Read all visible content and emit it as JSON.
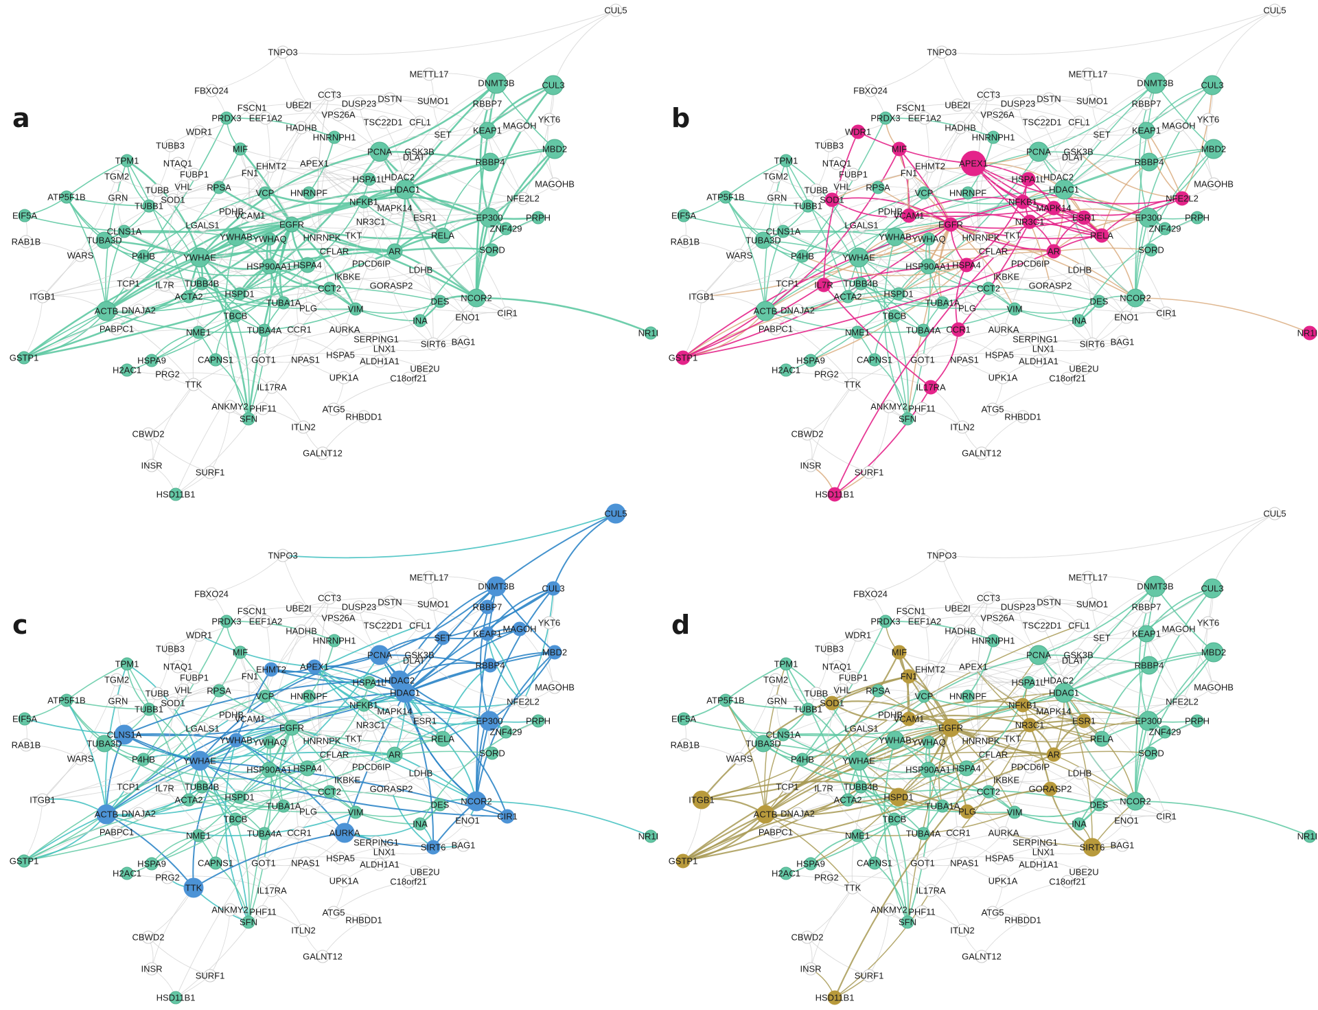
{
  "colors": {
    "background": "#ffffff",
    "base_node": "#64c7a5",
    "base_node_stroke": "#4fb08e",
    "empty_node": "#ffffff",
    "empty_stroke": "#c8c8c8",
    "grey_edge": "#cfcfcf",
    "green_edge": "#5fc9a3",
    "magenta": "#e4248a",
    "tan_edge": "#d8a878",
    "blue": "#4c93d6",
    "blue_edge": "#2f86c8",
    "teal_edge": "#3fbfbf",
    "olive": "#b89a3c",
    "olive_edge": "#a89a55",
    "label": "#1a1a1a"
  },
  "nodes": [
    {
      "id": "CUL5",
      "label": "CUL5"
    },
    {
      "id": "TNPO3",
      "label": "TNPO3"
    },
    {
      "id": "METTL17",
      "label": "METTL17"
    },
    {
      "id": "DNMT3B",
      "label": "DNMT3B"
    },
    {
      "id": "CUL3",
      "label": "CUL3"
    },
    {
      "id": "FBXO24",
      "label": "FBXO24"
    },
    {
      "id": "CCT3",
      "label": "CCT3"
    },
    {
      "id": "UBE2I",
      "label": "UBE2I"
    },
    {
      "id": "DUSP23",
      "label": "DUSP23"
    },
    {
      "id": "DSTN",
      "label": "DSTN"
    },
    {
      "id": "SUMO1",
      "label": "SUMO1"
    },
    {
      "id": "RBBP7",
      "label": "RBBP7"
    },
    {
      "id": "YKT6",
      "label": "YKT6"
    },
    {
      "id": "FSCN1",
      "label": "FSCN1"
    },
    {
      "id": "PRDX3",
      "label": "PRDX3"
    },
    {
      "id": "VPS26A",
      "label": "VPS26A"
    },
    {
      "id": "EEF1A2",
      "label": "EEF1A2"
    },
    {
      "id": "HADHB",
      "label": "HADHB"
    },
    {
      "id": "TSC22D1",
      "label": "TSC22D1"
    },
    {
      "id": "CFL1",
      "label": "CFL1"
    },
    {
      "id": "WDR1",
      "label": "WDR1"
    },
    {
      "id": "HNRNPH1",
      "label": "HNRNPH1"
    },
    {
      "id": "SET",
      "label": "SET"
    },
    {
      "id": "KEAP1",
      "label": "KEAP1"
    },
    {
      "id": "MAGOH",
      "label": "MAGOH"
    },
    {
      "id": "TUBB3",
      "label": "TUBB3"
    },
    {
      "id": "MIF",
      "label": "MIF"
    },
    {
      "id": "PCNA",
      "label": "PCNA"
    },
    {
      "id": "GSK3B",
      "label": "GSK3B"
    },
    {
      "id": "DLAT",
      "label": "DLAT"
    },
    {
      "id": "RBBP4",
      "label": "RBBP4"
    },
    {
      "id": "MBD2",
      "label": "MBD2"
    },
    {
      "id": "TPM1",
      "label": "TPM1"
    },
    {
      "id": "NTAQ1",
      "label": "NTAQ1"
    },
    {
      "id": "EHMT2",
      "label": "EHMT2"
    },
    {
      "id": "APEX1",
      "label": "APEX1"
    },
    {
      "id": "FUBP1",
      "label": "FUBP1"
    },
    {
      "id": "FN1",
      "label": "FN1"
    },
    {
      "id": "TGM2",
      "label": "TGM2"
    },
    {
      "id": "HSPA1L",
      "label": "HSPA1L"
    },
    {
      "id": "HDAC2",
      "label": "HDAC2"
    },
    {
      "id": "VHL",
      "label": "VHL"
    },
    {
      "id": "RPSA",
      "label": "RPSA"
    },
    {
      "id": "TUBB",
      "label": "TUBB"
    },
    {
      "id": "HDAC1",
      "label": "HDAC1"
    },
    {
      "id": "MAGOHB",
      "label": "MAGOHB"
    },
    {
      "id": "ATP5F1B",
      "label": "ATP5F1B"
    },
    {
      "id": "GRN",
      "label": "GRN"
    },
    {
      "id": "SOD1",
      "label": "SOD1"
    },
    {
      "id": "VCP",
      "label": "VCP"
    },
    {
      "id": "HNRNPF",
      "label": "HNRNPF"
    },
    {
      "id": "NFKB1",
      "label": "NFKB1"
    },
    {
      "id": "NFE2L2",
      "label": "NFE2L2"
    },
    {
      "id": "TUBB1",
      "label": "TUBB1"
    },
    {
      "id": "PDHB",
      "label": "PDHB"
    },
    {
      "id": "MAPK14",
      "label": "MAPK14"
    },
    {
      "id": "EIF5A",
      "label": "EIF5A"
    },
    {
      "id": "VCAM1",
      "label": "VCAM1"
    },
    {
      "id": "ESR1",
      "label": "ESR1"
    },
    {
      "id": "EP300",
      "label": "EP300"
    },
    {
      "id": "PRPH",
      "label": "PRPH"
    },
    {
      "id": "LGALS1",
      "label": "LGALS1"
    },
    {
      "id": "EGFR",
      "label": "EGFR"
    },
    {
      "id": "NR3C1",
      "label": "NR3C1"
    },
    {
      "id": "CLNS1A",
      "label": "CLNS1A"
    },
    {
      "id": "ZNF429",
      "label": "ZNF429"
    },
    {
      "id": "TUBA3D",
      "label": "TUBA3D"
    },
    {
      "id": "RAB1B",
      "label": "RAB1B"
    },
    {
      "id": "YWHAB",
      "label": "YWHAB"
    },
    {
      "id": "YWHAQ",
      "label": "YWHAQ"
    },
    {
      "id": "HNRNPK",
      "label": "HNRNPK"
    },
    {
      "id": "TKT",
      "label": "TKT"
    },
    {
      "id": "RELA",
      "label": "RELA"
    },
    {
      "id": "WARS",
      "label": "WARS"
    },
    {
      "id": "P4HB",
      "label": "P4HB"
    },
    {
      "id": "YWHAE",
      "label": "YWHAE"
    },
    {
      "id": "CFLAR",
      "label": "CFLAR"
    },
    {
      "id": "AR",
      "label": "AR"
    },
    {
      "id": "SORD",
      "label": "SORD"
    },
    {
      "id": "HSP90AA1",
      "label": "HSP90AA1"
    },
    {
      "id": "HSPA4",
      "label": "HSPA4"
    },
    {
      "id": "PDCD6IP",
      "label": "PDCD6IP"
    },
    {
      "id": "TCP1",
      "label": "TCP1"
    },
    {
      "id": "IL7R",
      "label": "IL7R"
    },
    {
      "id": "TUBB4B",
      "label": "TUBB4B"
    },
    {
      "id": "IKBKE",
      "label": "IKBKE"
    },
    {
      "id": "LDHB",
      "label": "LDHB"
    },
    {
      "id": "ITGB1",
      "label": "ITGB1"
    },
    {
      "id": "GORASP2",
      "label": "GORASP2"
    },
    {
      "id": "ACTA2",
      "label": "ACTA2"
    },
    {
      "id": "HSPD1",
      "label": "HSPD1"
    },
    {
      "id": "CCT2",
      "label": "CCT2"
    },
    {
      "id": "TUBA1A",
      "label": "TUBA1A"
    },
    {
      "id": "NCOR2",
      "label": "NCOR2"
    },
    {
      "id": "ACTB",
      "label": "ACTB"
    },
    {
      "id": "DNAJA2",
      "label": "DNAJA2"
    },
    {
      "id": "TBCB",
      "label": "TBCB"
    },
    {
      "id": "PLG",
      "label": "PLG"
    },
    {
      "id": "VIM",
      "label": "VIM"
    },
    {
      "id": "DES",
      "label": "DES"
    },
    {
      "id": "CIR1",
      "label": "CIR1"
    },
    {
      "id": "ENO1",
      "label": "ENO1"
    },
    {
      "id": "NME1",
      "label": "NME1"
    },
    {
      "id": "TUBA4A",
      "label": "TUBA4A"
    },
    {
      "id": "CCR1",
      "label": "CCR1"
    },
    {
      "id": "AURKA",
      "label": "AURKA"
    },
    {
      "id": "INA",
      "label": "INA"
    },
    {
      "id": "PABPC1",
      "label": "PABPC1"
    },
    {
      "id": "SERPING1",
      "label": "SERPING1"
    },
    {
      "id": "LNX1",
      "label": "LNX1"
    },
    {
      "id": "SIRT6",
      "label": "SIRT6"
    },
    {
      "id": "BAG1",
      "label": "BAG1"
    },
    {
      "id": "NR1I2",
      "label": "NR1I2"
    },
    {
      "id": "GSTP1",
      "label": "GSTP1"
    },
    {
      "id": "HSPA9",
      "label": "HSPA9"
    },
    {
      "id": "H2AC1",
      "label": "H2AC1"
    },
    {
      "id": "CAPNS1",
      "label": "CAPNS1"
    },
    {
      "id": "GOT1",
      "label": "GOT1"
    },
    {
      "id": "NPAS1",
      "label": "NPAS1"
    },
    {
      "id": "HSPA5",
      "label": "HSPA5"
    },
    {
      "id": "ALDH1A1",
      "label": "ALDH1A1"
    },
    {
      "id": "UBE2U",
      "label": "UBE2U"
    },
    {
      "id": "PRG2",
      "label": "PRG2"
    },
    {
      "id": "TTK",
      "label": "TTK"
    },
    {
      "id": "IL17RA",
      "label": "IL17RA"
    },
    {
      "id": "UPK1A",
      "label": "UPK1A"
    },
    {
      "id": "C18orf21",
      "label": "C18orf21"
    },
    {
      "id": "ANKMY2",
      "label": "ANKMY2"
    },
    {
      "id": "PHF11",
      "label": "PHF11"
    },
    {
      "id": "ATG5",
      "label": "ATG5"
    },
    {
      "id": "RHBDD1",
      "label": "RHBDD1"
    },
    {
      "id": "SFN",
      "label": "SFN"
    },
    {
      "id": "CBWD2",
      "label": "CBWD2"
    },
    {
      "id": "ITLN2",
      "label": "ITLN2"
    },
    {
      "id": "GALNT12",
      "label": "GALNT12"
    },
    {
      "id": "INSR",
      "label": "INSR"
    },
    {
      "id": "SURF1",
      "label": "SURF1"
    },
    {
      "id": "HSD11B1",
      "label": "HSD11B1"
    }
  ],
  "green_nodes": [
    "DNMT3B",
    "CUL3",
    "PRDX3",
    "KEAP1",
    "MIF",
    "PCNA",
    "RBBP4",
    "MBD2",
    "TPM1",
    "HSPA1L",
    "HDAC1",
    "ATP5F1B",
    "TUBB1",
    "EIF5A",
    "EP300",
    "PRPH",
    "CLNS1A",
    "YWHAB",
    "TUBA3D",
    "RELA",
    "P4HB",
    "YWHAE",
    "AR",
    "HSPA4",
    "TUBB4B",
    "HSPD1",
    "ACTA2",
    "NCOR2",
    "ACTB",
    "TBCB",
    "VIM",
    "DES",
    "NME1",
    "INA",
    "NR1I2",
    "GSTP1",
    "HSPA9",
    "H2AC1",
    "CAPNS1",
    "SFN",
    "HSD11B1",
    "VCP",
    "RPSA",
    "HNRNPF",
    "NFKB1",
    "EGFR",
    "YWHAQ",
    "HNRNPH1",
    "TUBA1A",
    "CCT2",
    "TUBA4A",
    "ZNF429",
    "HSP90AA1",
    "SORD"
  ],
  "panels": [
    {
      "letter": "a",
      "special": [],
      "special_color": "",
      "hubs": [
        "HDAC1",
        "EGFR",
        "YWHAE",
        "EP300",
        "NCOR2",
        "PCNA",
        "AR",
        "HSP90AA1",
        "ESR1",
        "CUL3"
      ]
    },
    {
      "letter": "b",
      "special": [
        "WDR1",
        "MIF",
        "APEX1",
        "HSPA1L",
        "SOD1",
        "NFKB1",
        "MAPK14",
        "ESR1",
        "NFE2L2",
        "VCAM1",
        "EGFR",
        "NR3C1",
        "RELA",
        "AR",
        "IL7R",
        "HSPA4",
        "CCR1",
        "IL17RA",
        "GSTP1",
        "NR1I2",
        "HSD11B1"
      ],
      "special_color": "magenta",
      "hubs": [
        "APEX1",
        "EGFR",
        "AR",
        "RELA",
        "ESR1",
        "NR3C1",
        "GSTP1",
        "HSPA4",
        "IL7R"
      ]
    },
    {
      "letter": "c",
      "special": [
        "CUL5",
        "DNMT3B",
        "CUL3",
        "RBBP7",
        "SET",
        "MAGOH",
        "KEAP1",
        "PCNA",
        "MBD2",
        "APEX1",
        "EHMT2",
        "HDAC2",
        "HDAC1",
        "RBBP4",
        "EP300",
        "CLNS1A",
        "YWHAB",
        "YWHAE",
        "ACTB",
        "NCOR2",
        "CIR1",
        "AURKA",
        "SIRT6",
        "TTK"
      ],
      "special_color": "blue",
      "hubs": [
        "HDAC1",
        "HDAC2",
        "NCOR2",
        "EP300",
        "DNMT3B",
        "PCNA",
        "YWHAE",
        "ACTB"
      ]
    },
    {
      "letter": "d",
      "special": [
        "MIF",
        "FN1",
        "SOD1",
        "NFKB1",
        "ESR1",
        "VCAM1",
        "EGFR",
        "NR3C1",
        "AR",
        "ITGB1",
        "ACTB",
        "HSPD1",
        "PLG",
        "GORASP2",
        "SIRT6",
        "GSTP1",
        "HSD11B1"
      ],
      "special_color": "olive",
      "hubs": [
        "EGFR",
        "ACTB",
        "HSPD1",
        "FN1",
        "ITGB1",
        "NR3C1",
        "AR",
        "VCAM1"
      ]
    }
  ]
}
